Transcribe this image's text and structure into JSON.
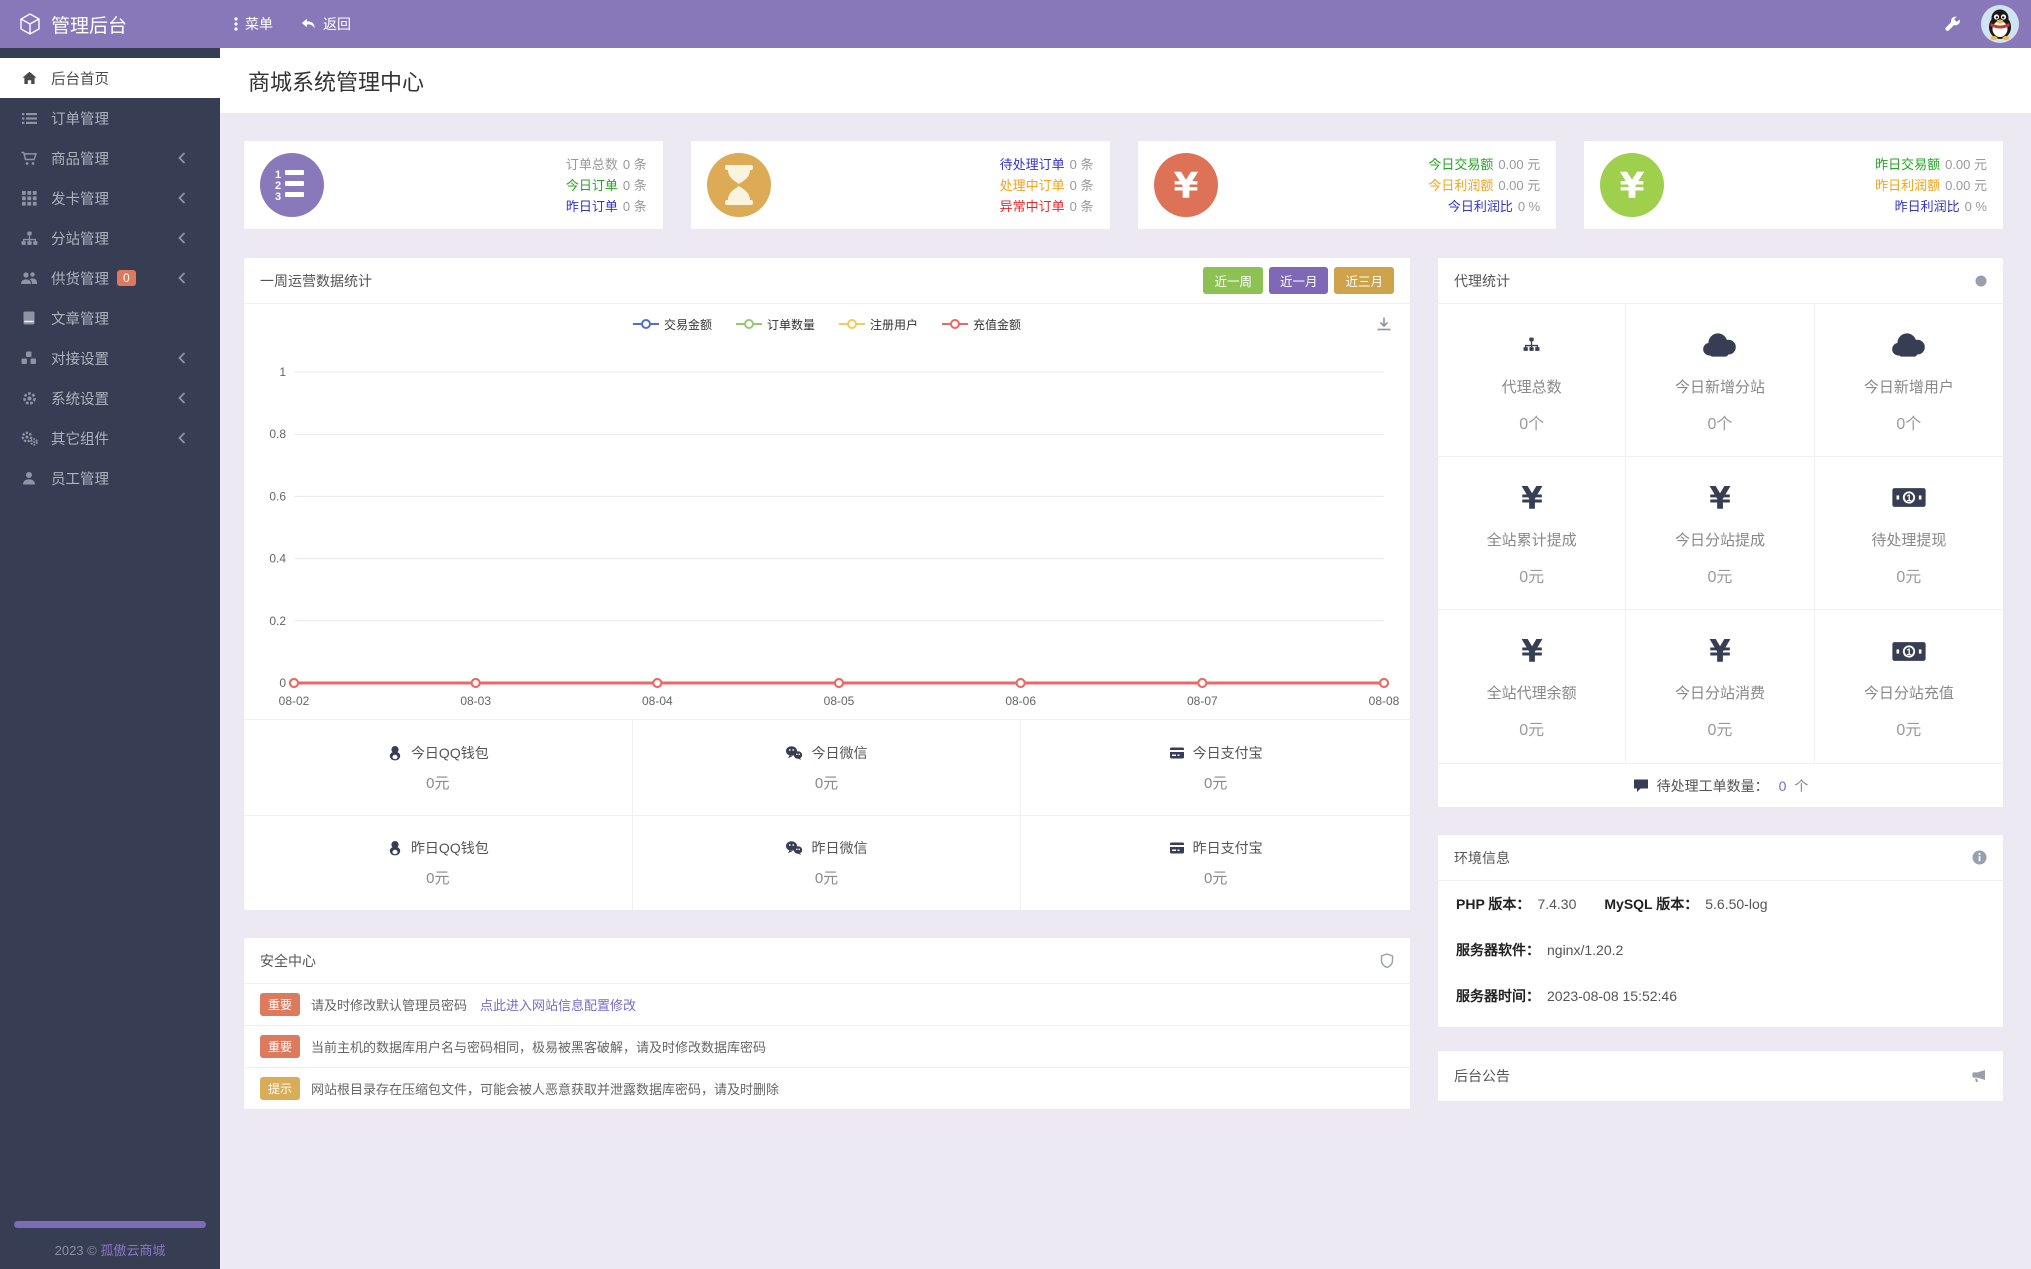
{
  "topbar": {
    "brand": "管理后台",
    "menu": "菜单",
    "back": "返回"
  },
  "sidebar": {
    "items": [
      {
        "icon": "home-icon",
        "label": "后台首页",
        "active": true
      },
      {
        "icon": "list-icon",
        "label": "订单管理"
      },
      {
        "icon": "cart-icon",
        "label": "商品管理",
        "chevron": true
      },
      {
        "icon": "grid-icon",
        "label": "发卡管理",
        "chevron": true
      },
      {
        "icon": "sitemap-icon",
        "label": "分站管理",
        "chevron": true
      },
      {
        "icon": "users-icon",
        "label": "供货管理",
        "badge": "0",
        "chevron": true
      },
      {
        "icon": "book-icon",
        "label": "文章管理"
      },
      {
        "icon": "cubes-icon",
        "label": "对接设置",
        "chevron": true
      },
      {
        "icon": "gear-icon",
        "label": "系统设置",
        "chevron": true
      },
      {
        "icon": "cogs-icon",
        "label": "其它组件",
        "chevron": true
      },
      {
        "icon": "user-icon",
        "label": "员工管理"
      }
    ],
    "footer_year": "2023 ©",
    "footer_brand": "孤傲云商城"
  },
  "page": {
    "title": "商城系统管理中心"
  },
  "stat_cards": [
    {
      "icon": "ordered-list-icon",
      "icon_bg": "#8979bb",
      "rows": [
        {
          "label": "订单总数",
          "value": "0 条",
          "label_color": "#999999"
        },
        {
          "label": "今日订单",
          "value": "0 条",
          "label_color": "#21a821"
        },
        {
          "label": "昨日订单",
          "value": "0 条",
          "label_color": "#3232cd"
        }
      ]
    },
    {
      "icon": "hourglass-icon",
      "icon_bg": "#ddab55",
      "rows": [
        {
          "label": "待处理订单",
          "value": "0 条",
          "label_color": "#3232cd"
        },
        {
          "label": "处理中订单",
          "value": "0 条",
          "label_color": "#f5a21c"
        },
        {
          "label": "异常中订单",
          "value": "0 条",
          "label_color": "#f02323"
        }
      ]
    },
    {
      "icon": "yen-icon",
      "icon_bg": "#dd7257",
      "rows": [
        {
          "label": "今日交易额",
          "value": "0.00 元",
          "label_color": "#21a821"
        },
        {
          "label": "今日利润额",
          "value": "0.00 元",
          "label_color": "#f5a21c"
        },
        {
          "label": "今日利润比",
          "value": "0 %",
          "label_color": "#3232cd"
        }
      ]
    },
    {
      "icon": "yen-icon",
      "icon_bg": "#9ed04e",
      "rows": [
        {
          "label": "昨日交易额",
          "value": "0.00 元",
          "label_color": "#21a821"
        },
        {
          "label": "昨日利润额",
          "value": "0.00 元",
          "label_color": "#f5a21c"
        },
        {
          "label": "昨日利润比",
          "value": "0 %",
          "label_color": "#3232cd"
        }
      ]
    }
  ],
  "chart_card": {
    "title": "一周运营数据统计",
    "range_buttons": [
      {
        "label": "近一周",
        "color": "#8dc153"
      },
      {
        "label": "近一月",
        "color": "#7e68b7"
      },
      {
        "label": "近三月",
        "color": "#cfa34c"
      }
    ]
  },
  "chart_data": {
    "type": "line",
    "title": "一周运营数据统计",
    "x": [
      "08-02",
      "08-03",
      "08-04",
      "08-05",
      "08-06",
      "08-07",
      "08-08"
    ],
    "series": [
      {
        "name": "交易金额",
        "color": "#5470c6",
        "values": [
          0,
          0,
          0,
          0,
          0,
          0,
          0
        ]
      },
      {
        "name": "订单数量",
        "color": "#91cc75",
        "values": [
          0,
          0,
          0,
          0,
          0,
          0,
          0
        ]
      },
      {
        "name": "注册用户",
        "color": "#fac858",
        "values": [
          0,
          0,
          0,
          0,
          0,
          0,
          0
        ]
      },
      {
        "name": "充值金额",
        "color": "#ee6666",
        "values": [
          0,
          0,
          0,
          0,
          0,
          0,
          0
        ]
      }
    ],
    "ylim": [
      0,
      1
    ],
    "yticks": [
      0,
      0.2,
      0.4,
      0.6,
      0.8,
      1
    ],
    "grid": true,
    "legend_position": "top-center"
  },
  "payments": [
    {
      "icon": "qq-icon",
      "label": "今日QQ钱包",
      "value": "0元"
    },
    {
      "icon": "wechat-icon",
      "label": "今日微信",
      "value": "0元"
    },
    {
      "icon": "alipay-icon",
      "label": "今日支付宝",
      "value": "0元"
    },
    {
      "icon": "qq-icon",
      "label": "昨日QQ钱包",
      "value": "0元"
    },
    {
      "icon": "wechat-icon",
      "label": "昨日微信",
      "value": "0元"
    },
    {
      "icon": "alipay-icon",
      "label": "昨日支付宝",
      "value": "0元"
    }
  ],
  "security": {
    "title": "安全中心",
    "alerts": [
      {
        "badge": "重要",
        "badge_color": "#dd7a5e",
        "text": "请及时修改默认管理员密码",
        "link": "点此进入网站信息配置修改"
      },
      {
        "badge": "重要",
        "badge_color": "#dd7a5e",
        "text": "当前主机的数据库用户名与密码相同，极易被黑客破解，请及时修改数据库密码"
      },
      {
        "badge": "提示",
        "badge_color": "#d9ad57",
        "text": "网站根目录存在压缩包文件，可能会被人恶意获取并泄露数据库密码，请及时删除"
      }
    ]
  },
  "agent": {
    "title": "代理统计",
    "cells": [
      {
        "icon": "sitemap-icon",
        "label": "代理总数",
        "value": "0个"
      },
      {
        "icon": "cloud-icon",
        "label": "今日新增分站",
        "value": "0个"
      },
      {
        "icon": "cloud-icon",
        "label": "今日新增用户",
        "value": "0个"
      },
      {
        "icon": "yen-text-icon",
        "label": "全站累计提成",
        "value": "0元"
      },
      {
        "icon": "yen-text-icon",
        "label": "今日分站提成",
        "value": "0元"
      },
      {
        "icon": "bill-icon",
        "label": "待处理提现",
        "value": "0元"
      },
      {
        "icon": "yen-text-icon",
        "label": "全站代理余额",
        "value": "0元"
      },
      {
        "icon": "yen-text-icon",
        "label": "今日分站消费",
        "value": "0元"
      },
      {
        "icon": "bill-icon",
        "label": "今日分站充值",
        "value": "0元"
      }
    ],
    "footer": {
      "icon": "comment-icon",
      "label": "待处理工单数量：",
      "count": "0",
      "unit": "个"
    }
  },
  "environment": {
    "title": "环境信息",
    "rows": [
      [
        {
          "k": "PHP 版本：",
          "v": "7.4.30"
        },
        {
          "k": "MySQL 版本：",
          "v": "5.6.50-log"
        }
      ],
      [
        {
          "k": "服务器软件：",
          "v": "nginx/1.20.2"
        }
      ],
      [
        {
          "k": "服务器时间：",
          "v": "2023-08-08 15:52:46"
        }
      ]
    ]
  },
  "announcement": {
    "title": "后台公告"
  },
  "colors": {
    "topbar": "#8978b9",
    "sidebar": "#373d52",
    "content_bg": "#ece9f2",
    "badge_danger": "#dd7a5e",
    "badge_warn": "#d9ad57",
    "link": "#7b68c9",
    "green": "#21a821",
    "blue": "#3232cd",
    "orange": "#f5a21c",
    "red": "#f02323"
  }
}
